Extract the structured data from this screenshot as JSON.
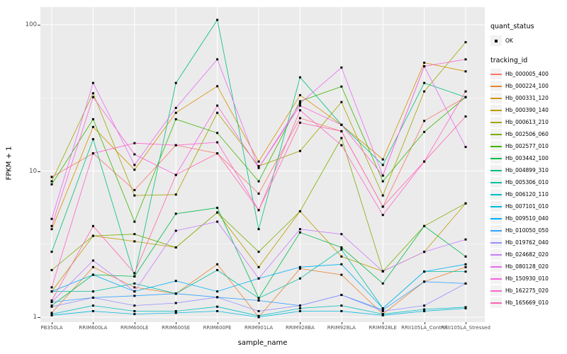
{
  "chart_data": {
    "type": "line",
    "title": "",
    "xlabel": "sample_name",
    "ylabel": "FPKM + 1",
    "y_scale": "log10",
    "y_ticks": [
      1,
      10,
      100
    ],
    "ylim": [
      0.93,
      132
    ],
    "grid": true,
    "panel_bg": "#EBEBEB",
    "grid_color": "#FFFFFF",
    "point_color": "#000000",
    "legend_position": "right",
    "categories": [
      "PB350LA",
      "RRIM600LA",
      "RRIM600LE",
      "RRIM600SE",
      "RRIM600PE",
      "RRIM901LA",
      "RRIM928BA",
      "RRIM928LA",
      "RRIM928LE",
      "RRII105LA_Control",
      "RRII105LA_Stressed"
    ],
    "series": [
      {
        "name": "Hb_000005_400",
        "color": "#F8766D",
        "values": [
          9.1,
          13.2,
          7.4,
          15,
          13.2,
          7.0,
          23,
          18.7,
          5.7,
          22,
          32
        ]
      },
      {
        "name": "Hb_000224_100",
        "color": "#EA8331",
        "values": [
          1.07,
          2.2,
          1.6,
          1.45,
          2.3,
          1.0,
          2.15,
          1.95,
          1.05,
          1.75,
          2.2
        ]
      },
      {
        "name": "Hb_000331_120",
        "color": "#D89000",
        "values": [
          4.0,
          20,
          10.2,
          25,
          38,
          11.6,
          33,
          20.7,
          12,
          55,
          48
        ]
      },
      {
        "name": "Hb_000390_140",
        "color": "#C09B00",
        "values": [
          1.5,
          3.6,
          3.3,
          3.0,
          5.2,
          2.2,
          5.3,
          2.6,
          2.06,
          2.8,
          6.0
        ]
      },
      {
        "name": "Hb_000613_210",
        "color": "#A3A500",
        "values": [
          8.5,
          34,
          6.8,
          6.9,
          25,
          10.8,
          13.7,
          29.6,
          6.8,
          35,
          76
        ]
      },
      {
        "name": "Hb_002506_060",
        "color": "#7CAE00",
        "values": [
          2.1,
          3.6,
          3.7,
          3.0,
          5.2,
          2.8,
          5.3,
          16.8,
          2.06,
          4.2,
          6.0
        ]
      },
      {
        "name": "Hb_002577_010",
        "color": "#39B600",
        "values": [
          8.1,
          22.6,
          4.5,
          22.6,
          18.2,
          8.5,
          30,
          37.8,
          8.5,
          18.5,
          32
        ]
      },
      {
        "name": "Hb_003442_100",
        "color": "#00BB4E",
        "values": [
          1.2,
          1.95,
          1.9,
          5.1,
          5.6,
          1.35,
          3.8,
          3.0,
          1.7,
          4.2,
          2.6
        ]
      },
      {
        "name": "Hb_004899_310",
        "color": "#00BF7D",
        "values": [
          2.8,
          16.5,
          1.9,
          40,
          108,
          4.0,
          43.7,
          20.7,
          11,
          40,
          32
        ]
      },
      {
        "name": "Hb_005306_010",
        "color": "#00C1A3",
        "values": [
          1.5,
          1.5,
          1.7,
          1.45,
          2.1,
          1.35,
          1.84,
          2.9,
          1.15,
          2.05,
          2.05
        ]
      },
      {
        "name": "Hb_006120_110",
        "color": "#00BFC4",
        "values": [
          1.05,
          1.2,
          1.1,
          1.1,
          1.18,
          1.02,
          1.15,
          1.2,
          1.05,
          1.13,
          1.17
        ]
      },
      {
        "name": "Hb_007101_010",
        "color": "#00BAE0",
        "values": [
          1.03,
          1.1,
          1.05,
          1.07,
          1.1,
          1.0,
          1.1,
          1.1,
          1.03,
          1.1,
          1.15
        ]
      },
      {
        "name": "Hb_009510_040",
        "color": "#00B0F6",
        "values": [
          1.5,
          1.95,
          1.5,
          1.77,
          1.5,
          1.84,
          2.2,
          2.3,
          1.15,
          2.05,
          2.3
        ]
      },
      {
        "name": "Hb_010050_050",
        "color": "#35A2FF",
        "values": [
          1.27,
          1.36,
          1.4,
          1.45,
          1.37,
          1.3,
          1.2,
          1.42,
          1.12,
          1.75,
          1.7
        ]
      },
      {
        "name": "Hb_019762_040",
        "color": "#9590FF",
        "values": [
          1.18,
          1.36,
          1.2,
          1.25,
          1.37,
          1.1,
          1.2,
          1.42,
          1.1,
          1.2,
          1.7
        ]
      },
      {
        "name": "Hb_024682_020",
        "color": "#C77CFF",
        "values": [
          1.27,
          2.44,
          1.5,
          3.9,
          4.5,
          1.84,
          4.0,
          3.7,
          2.06,
          2.8,
          3.4
        ]
      },
      {
        "name": "Hb_080128_020",
        "color": "#E76BF3",
        "values": [
          4.7,
          40,
          11,
          27,
          58,
          10.5,
          29,
          51,
          9.3,
          52,
          14.6
        ]
      },
      {
        "name": "Hb_150930_010",
        "color": "#FA62DB",
        "values": [
          4.2,
          32,
          13,
          9.4,
          28,
          10.5,
          28,
          20.7,
          9.3,
          52,
          58
        ]
      },
      {
        "name": "Hb_162275_020",
        "color": "#FF61CC",
        "values": [
          1.6,
          13.2,
          15.5,
          15,
          15.7,
          5.4,
          26,
          15,
          5.0,
          11.6,
          35
        ]
      },
      {
        "name": "Hb_165669_010",
        "color": "#FF65AE",
        "values": [
          1.3,
          4.2,
          2.0,
          9.4,
          13.2,
          5.4,
          21.4,
          18.7,
          5.7,
          11.6,
          23.6
        ]
      }
    ]
  },
  "legend": {
    "quant_status": {
      "title": "quant_status",
      "items": [
        {
          "label": "OK",
          "marker": "black-square-point"
        }
      ]
    },
    "tracking_id": {
      "title": "tracking_id"
    }
  }
}
